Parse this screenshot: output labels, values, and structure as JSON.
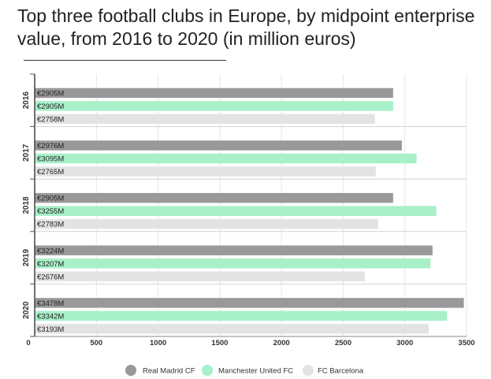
{
  "chart_data": {
    "type": "bar",
    "orientation": "horizontal",
    "title": "Top three football clubs in Europe, by midpoint enterprise value, from 2016 to 2020 (in million euros)",
    "categories": [
      "2016",
      "2017",
      "2018",
      "2019",
      "2020"
    ],
    "series": [
      {
        "name": "Real Madrid CF",
        "color": "#999999",
        "values": [
          2905,
          2976,
          2905,
          3224,
          3478
        ],
        "labels": [
          "€2905M",
          "€2976M",
          "€2905M",
          "€3224M",
          "€3478M"
        ]
      },
      {
        "name": "Manchester United FC",
        "color": "#a8f0c8",
        "values": [
          2905,
          3095,
          3255,
          3207,
          3342
        ],
        "labels": [
          "€2905M",
          "€3095M",
          "€3255M",
          "€3207M",
          "€3342M"
        ]
      },
      {
        "name": "FC Barcelona",
        "color": "#e3e3e3",
        "values": [
          2758,
          2765,
          2783,
          2676,
          3193
        ],
        "labels": [
          "€2758M",
          "€2765M",
          "€2783M",
          "€2676M",
          "€3193M"
        ]
      }
    ],
    "xticks": [
      "0",
      "500",
      "1000",
      "1500",
      "2000",
      "2500",
      "3000",
      "3500"
    ],
    "xlim": [
      0,
      3500
    ],
    "grid": true,
    "legend_position": "bottom"
  }
}
